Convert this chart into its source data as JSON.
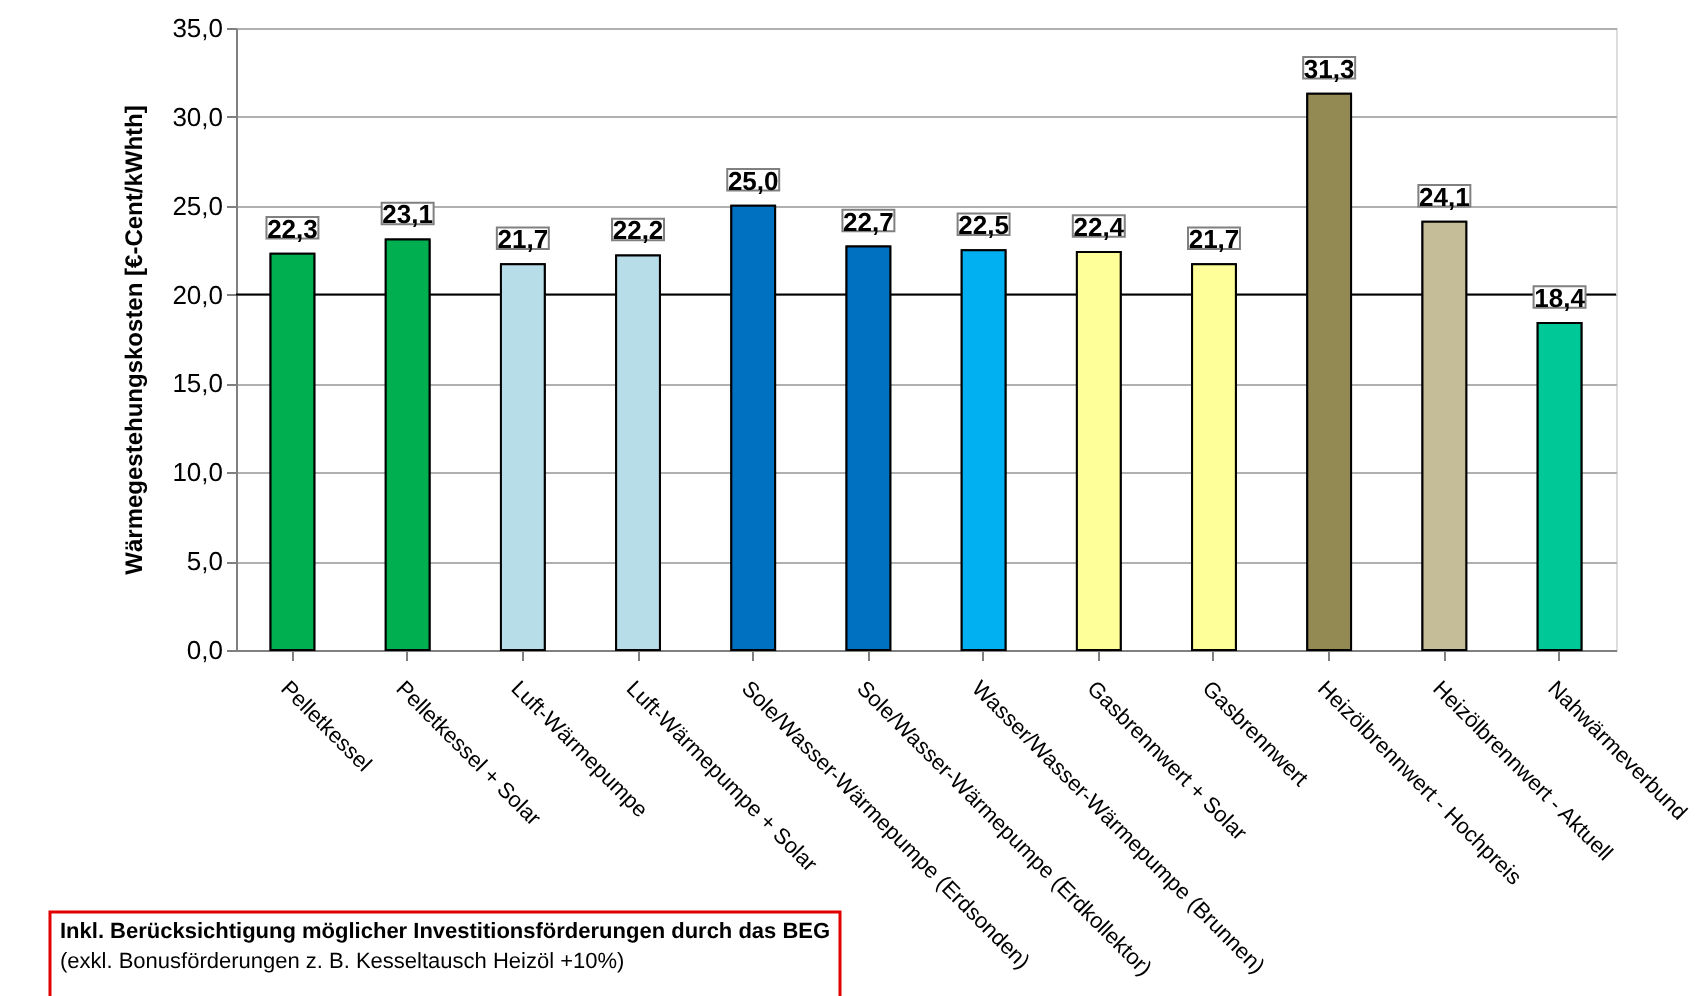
{
  "chart_data": {
    "type": "bar",
    "ylabel": "Wärmegestehungskosten [€-Cent/kWhth]",
    "categories": [
      "Pelletkessel",
      "Pelletkessel + Solar",
      "Luft-Wärmepumpe",
      "Luft-Wärmepumpe + Solar",
      "Sole/Wasser-Wärmepumpe (Erdsonden)",
      "Sole/Wasser-Wärmepumpe (Erdkollektor)",
      "Wasser/Wasser-Wärmepumpe (Brunnen)",
      "Gasbrennwert + Solar",
      "Gasbrennwert",
      "Heizölbrennwert - Hochpreis",
      "Heizölbrennwert - Aktuell",
      "Nahwärmeverbund"
    ],
    "values": [
      22.3,
      23.1,
      21.7,
      22.2,
      25.0,
      22.7,
      22.5,
      22.4,
      21.7,
      31.3,
      24.1,
      18.4
    ],
    "value_labels": [
      "22,3",
      "23,1",
      "21,7",
      "22,2",
      "25,0",
      "22,7",
      "22,5",
      "22,4",
      "21,7",
      "31,3",
      "24,1",
      "18,4"
    ],
    "colors": [
      "#00b050",
      "#00b050",
      "#b7dde8",
      "#b7dde8",
      "#0070c0",
      "#0070c0",
      "#00b0f0",
      "#ffff99",
      "#ffff99",
      "#938953",
      "#c4bd97",
      "#00c896"
    ],
    "ylim": [
      0,
      35
    ],
    "yticks": [
      {
        "value": 0,
        "label": "0,0"
      },
      {
        "value": 5,
        "label": "5,0"
      },
      {
        "value": 10,
        "label": "10,0"
      },
      {
        "value": 15,
        "label": "15,0"
      },
      {
        "value": 20,
        "label": "20,0"
      },
      {
        "value": 25,
        "label": "25,0"
      },
      {
        "value": 30,
        "label": "30,0"
      },
      {
        "value": 35,
        "label": "35,0"
      }
    ],
    "ref_lines": [
      {
        "axis": "y",
        "value": 20,
        "color": "#000000"
      }
    ],
    "grid": "y",
    "annotations": [
      "Inkl. Berücksichtigung möglicher Investitionsförderungen durch das BEG",
      "(exkl. Bonusförderungen z. B. Kesseltausch Heizöl +10%)"
    ]
  }
}
